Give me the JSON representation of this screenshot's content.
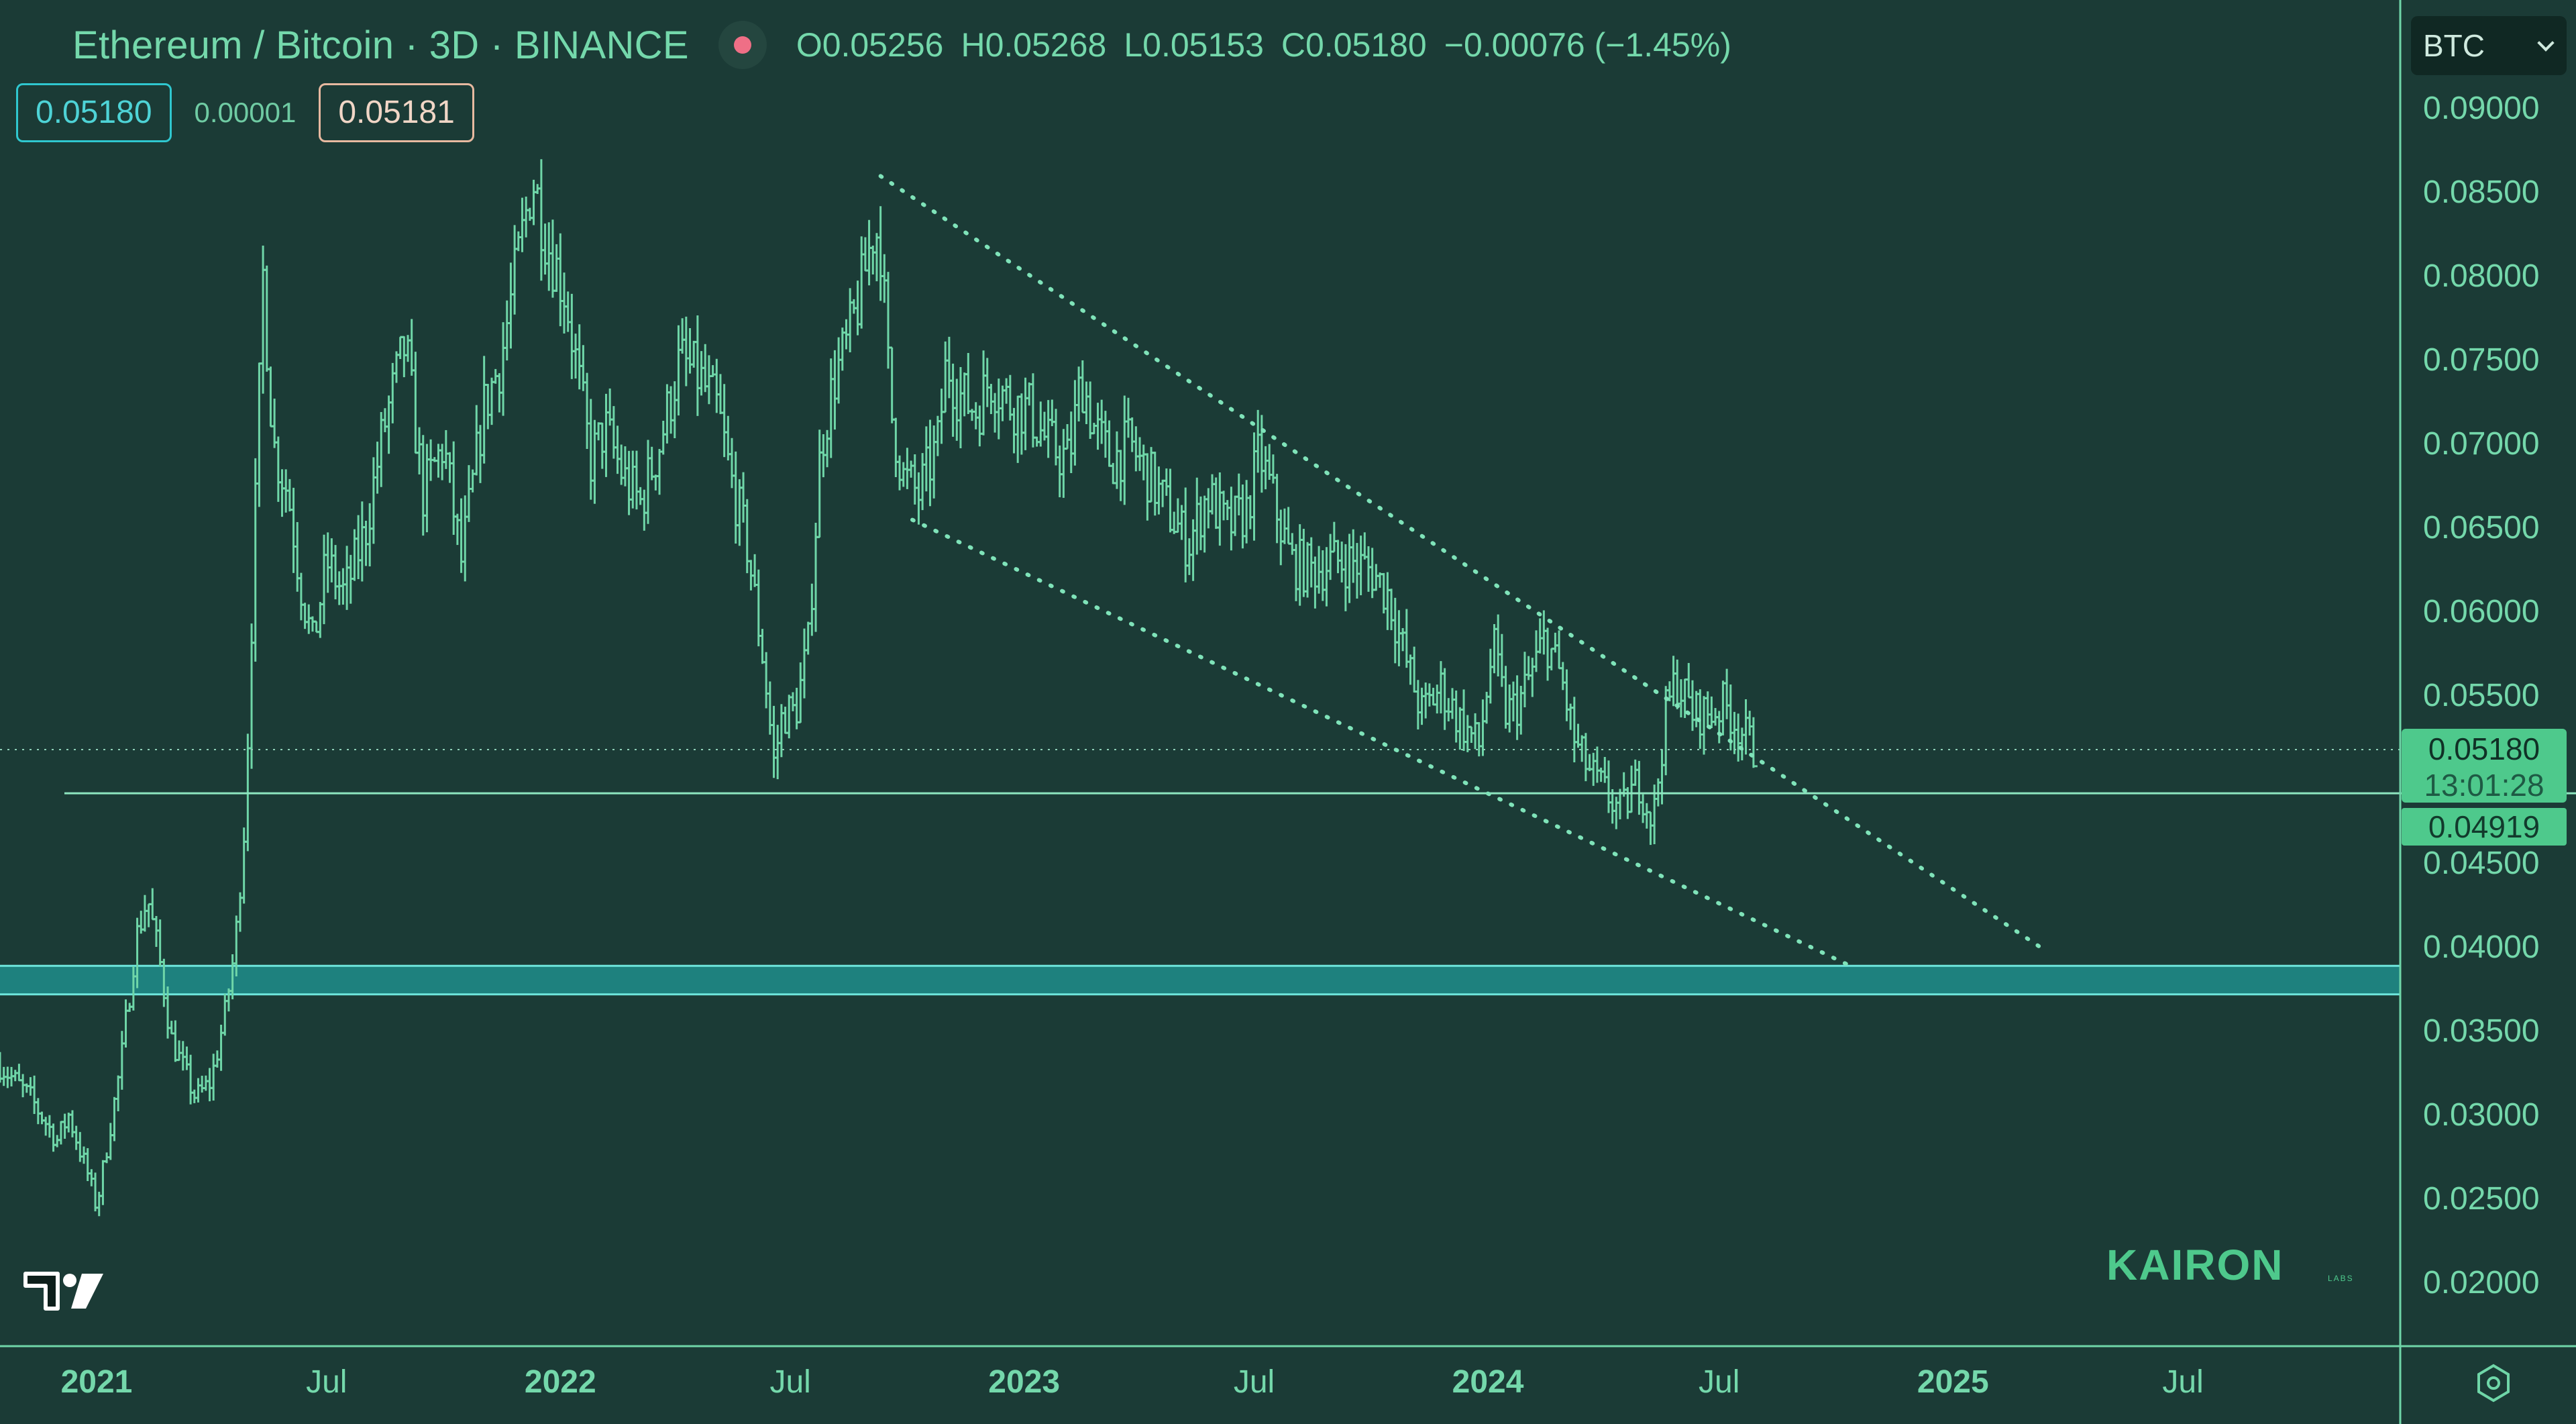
{
  "header": {
    "title": "Ethereum / Bitcoin · 3D · BINANCE",
    "ohlc": {
      "open": "O0.05256",
      "high": "H0.05268",
      "low": "L0.05153",
      "close": "C0.05180",
      "change": "−0.00076 (−1.45%)"
    }
  },
  "quote": {
    "bid": "0.05180",
    "spread": "0.00001",
    "ask": "0.05181"
  },
  "currency_select": {
    "value": "BTC"
  },
  "price_tags": {
    "last_price": "0.05180",
    "countdown": "13:01:28",
    "level_price": "0.04919"
  },
  "watermark": {
    "brand": "KAIRON",
    "brand_sub": "LABS"
  },
  "colors": {
    "background": "#1b3b36",
    "candle": "#6fd6a8",
    "support_band": "#1f8a86",
    "accent": "#4ec98c"
  },
  "chart_data": {
    "type": "candlestick",
    "title": "Ethereum / Bitcoin · 3D · BINANCE",
    "symbol": "ETH/BTC",
    "timeframe": "3D",
    "exchange": "BINANCE",
    "y_axis_side": "right",
    "y_ticks": [
      "0.09000",
      "0.08500",
      "0.08000",
      "0.07500",
      "0.07000",
      "0.06500",
      "0.06000",
      "0.05500",
      "0.04500",
      "0.04000",
      "0.03500",
      "0.03000",
      "0.02500",
      "0.02000"
    ],
    "ylim": [
      0.0163,
      0.0965
    ],
    "x_ticks": [
      {
        "label": "2021",
        "date": "2021-01-01",
        "year": true
      },
      {
        "label": "Jul",
        "date": "2021-07-01",
        "year": false
      },
      {
        "label": "2022",
        "date": "2022-01-01",
        "year": true
      },
      {
        "label": "Jul",
        "date": "2022-07-01",
        "year": false
      },
      {
        "label": "2023",
        "date": "2023-01-01",
        "year": true
      },
      {
        "label": "Jul",
        "date": "2023-07-01",
        "year": false
      },
      {
        "label": "2024",
        "date": "2024-01-01",
        "year": true
      },
      {
        "label": "Jul",
        "date": "2024-07-01",
        "year": false
      },
      {
        "label": "2025",
        "date": "2025-01-01",
        "year": true
      },
      {
        "label": "Jul",
        "date": "2025-07-01",
        "year": false
      }
    ],
    "xlim": [
      "2020-10-17",
      "2025-12-19"
    ],
    "series_points": [
      [
        "2020-10-17",
        0.033
      ],
      [
        "2020-11-10",
        0.031
      ],
      [
        "2020-12-01",
        0.0285
      ],
      [
        "2020-12-10",
        0.03
      ],
      [
        "2020-12-25",
        0.0265
      ],
      [
        "2021-01-01",
        0.0245
      ],
      [
        "2021-01-20",
        0.033
      ],
      [
        "2021-02-01",
        0.0405
      ],
      [
        "2021-02-10",
        0.043
      ],
      [
        "2021-02-20",
        0.039
      ],
      [
        "2021-03-01",
        0.0345
      ],
      [
        "2021-03-20",
        0.031
      ],
      [
        "2021-04-01",
        0.032
      ],
      [
        "2021-04-12",
        0.036
      ],
      [
        "2021-04-20",
        0.04
      ],
      [
        "2021-04-28",
        0.048
      ],
      [
        "2021-05-05",
        0.064
      ],
      [
        "2021-05-12",
        0.08
      ],
      [
        "2021-05-20",
        0.07
      ],
      [
        "2021-06-01",
        0.067
      ],
      [
        "2021-06-10",
        0.062
      ],
      [
        "2021-06-20",
        0.058
      ],
      [
        "2021-07-01",
        0.063
      ],
      [
        "2021-07-15",
        0.061
      ],
      [
        "2021-08-01",
        0.065
      ],
      [
        "2021-08-15",
        0.071
      ],
      [
        "2021-09-01",
        0.076
      ],
      [
        "2021-09-15",
        0.067
      ],
      [
        "2021-10-01",
        0.07
      ],
      [
        "2021-10-15",
        0.063
      ],
      [
        "2021-10-25",
        0.068
      ],
      [
        "2021-11-01",
        0.072
      ],
      [
        "2021-11-15",
        0.075
      ],
      [
        "2021-12-01",
        0.082
      ],
      [
        "2021-12-10",
        0.086
      ],
      [
        "2021-12-22",
        0.082
      ],
      [
        "2022-01-05",
        0.079
      ],
      [
        "2022-01-15",
        0.074
      ],
      [
        "2022-01-25",
        0.069
      ],
      [
        "2022-02-05",
        0.071
      ],
      [
        "2022-02-20",
        0.068
      ],
      [
        "2022-03-05",
        0.0665
      ],
      [
        "2022-03-20",
        0.07
      ],
      [
        "2022-04-05",
        0.075
      ],
      [
        "2022-04-20",
        0.074
      ],
      [
        "2022-05-05",
        0.072
      ],
      [
        "2022-05-15",
        0.068
      ],
      [
        "2022-05-28",
        0.064
      ],
      [
        "2022-06-10",
        0.057
      ],
      [
        "2022-06-18",
        0.051
      ],
      [
        "2022-06-25",
        0.054
      ],
      [
        "2022-07-05",
        0.054
      ],
      [
        "2022-07-15",
        0.058
      ],
      [
        "2022-07-25",
        0.07
      ],
      [
        "2022-08-05",
        0.074
      ],
      [
        "2022-08-15",
        0.076
      ],
      [
        "2022-08-25",
        0.079
      ],
      [
        "2022-09-05",
        0.083
      ],
      [
        "2022-09-10",
        0.082
      ],
      [
        "2022-09-18",
        0.072
      ],
      [
        "2022-09-28",
        0.068
      ],
      [
        "2022-10-10",
        0.067
      ],
      [
        "2022-10-25",
        0.07
      ],
      [
        "2022-11-01",
        0.075
      ],
      [
        "2022-11-10",
        0.073
      ],
      [
        "2022-11-25",
        0.072
      ],
      [
        "2022-12-05",
        0.074
      ],
      [
        "2022-12-20",
        0.0725
      ],
      [
        "2023-01-05",
        0.072
      ],
      [
        "2023-01-20",
        0.07
      ],
      [
        "2023-02-05",
        0.069
      ],
      [
        "2023-02-15",
        0.074
      ],
      [
        "2023-02-25",
        0.071
      ],
      [
        "2023-03-10",
        0.069
      ],
      [
        "2023-03-25",
        0.07
      ],
      [
        "2023-04-10",
        0.068
      ],
      [
        "2023-04-25",
        0.066
      ],
      [
        "2023-05-10",
        0.064
      ],
      [
        "2023-05-25",
        0.067
      ],
      [
        "2023-06-10",
        0.065
      ],
      [
        "2023-06-25",
        0.066
      ],
      [
        "2023-07-05",
        0.0695
      ],
      [
        "2023-07-15",
        0.067
      ],
      [
        "2023-07-30",
        0.063
      ],
      [
        "2023-08-15",
        0.0625
      ],
      [
        "2023-09-01",
        0.063
      ],
      [
        "2023-09-15",
        0.063
      ],
      [
        "2023-10-01",
        0.0625
      ],
      [
        "2023-10-15",
        0.061
      ],
      [
        "2023-10-25",
        0.058
      ],
      [
        "2023-11-10",
        0.054
      ],
      [
        "2023-11-25",
        0.0555
      ],
      [
        "2023-12-10",
        0.0535
      ],
      [
        "2023-12-25",
        0.052
      ],
      [
        "2024-01-05",
        0.058
      ],
      [
        "2024-01-15",
        0.054
      ],
      [
        "2024-01-25",
        0.0545
      ],
      [
        "2024-02-05",
        0.0565
      ],
      [
        "2024-02-15",
        0.0585
      ],
      [
        "2024-02-28",
        0.056
      ],
      [
        "2024-03-10",
        0.052
      ],
      [
        "2024-03-25",
        0.05
      ],
      [
        "2024-04-05",
        0.049
      ],
      [
        "2024-04-15",
        0.048
      ],
      [
        "2024-04-28",
        0.05
      ],
      [
        "2024-05-10",
        0.0475
      ],
      [
        "2024-05-20",
        0.054
      ],
      [
        "2024-05-28",
        0.056
      ],
      [
        "2024-06-10",
        0.054
      ],
      [
        "2024-06-25",
        0.054
      ],
      [
        "2024-07-05",
        0.0545
      ],
      [
        "2024-07-18",
        0.053
      ],
      [
        "2024-07-28",
        0.0518
      ]
    ],
    "descending_channel": {
      "upper": [
        [
          "2022-09-10",
          0.086
        ],
        [
          "2025-03-15",
          0.0398
        ]
      ],
      "lower": [
        [
          "2022-10-05",
          0.0655
        ],
        [
          "2024-10-15",
          0.0388
        ]
      ]
    },
    "support_band": [
      0.0372,
      0.0389
    ],
    "horizontal_level": 0.04919,
    "last_price": 0.0518
  }
}
